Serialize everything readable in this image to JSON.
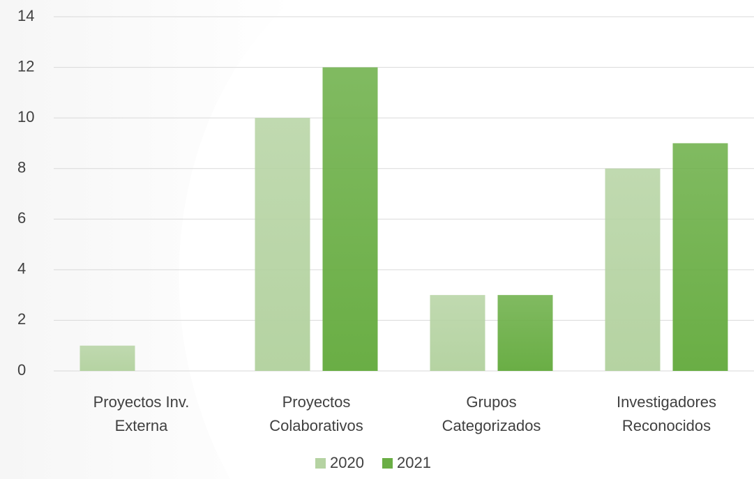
{
  "chart_data": {
    "type": "bar",
    "categories": [
      [
        "Proyectos Inv.",
        "Externa"
      ],
      [
        "Proyectos",
        "Colaborativos"
      ],
      [
        "Grupos",
        "Categorizados"
      ],
      [
        "Investigadores",
        "Reconocidos"
      ]
    ],
    "series": [
      {
        "name": "2020",
        "color": "#b5d3a2",
        "values": [
          1,
          10,
          3,
          8
        ]
      },
      {
        "name": "2021",
        "color": "#6aae45",
        "values": [
          0,
          12,
          3,
          9
        ]
      }
    ],
    "ylim": [
      0,
      14
    ],
    "yticks": [
      0,
      2,
      4,
      6,
      8,
      10,
      12,
      14
    ],
    "grid": true,
    "legend": "bottom"
  }
}
